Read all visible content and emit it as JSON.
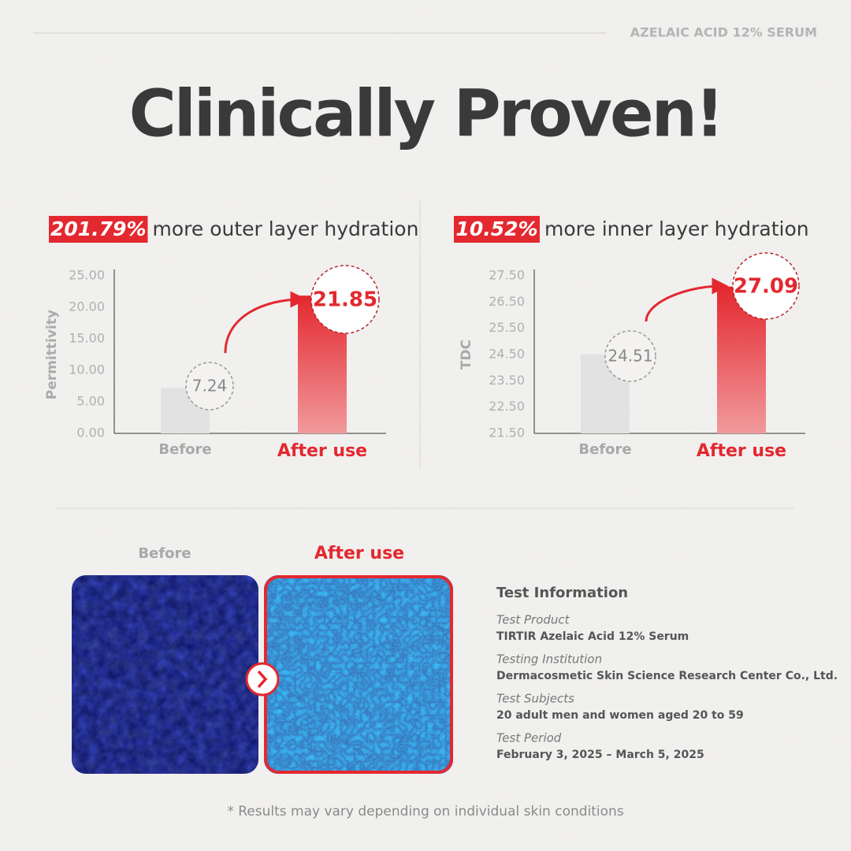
{
  "header": {
    "brand": "AZELAIC ACID 12% SERUM",
    "title": "Clinically Proven!"
  },
  "chart_data": [
    {
      "type": "bar",
      "highlight": "201.79%",
      "title": "more outer layer hydration",
      "y_label": "Permittivity",
      "categories": [
        "Before",
        "After use"
      ],
      "values": [
        7.24,
        21.85
      ],
      "colors": [
        "#e2e2e2",
        "#e3282f"
      ],
      "ylim": [
        0,
        25
      ],
      "yticks": [
        {
          "value": 0,
          "label": "0.00"
        },
        {
          "value": 5,
          "label": "5.00"
        },
        {
          "value": 10,
          "label": "10.00"
        },
        {
          "value": 15,
          "label": "15.00"
        },
        {
          "value": 20,
          "label": "20.00"
        },
        {
          "value": 25,
          "label": "25.00"
        }
      ]
    },
    {
      "type": "bar",
      "highlight": "10.52%",
      "title": "more inner layer hydration",
      "y_label": "TDC",
      "categories": [
        "Before",
        "After use"
      ],
      "values": [
        24.51,
        27.09
      ],
      "colors": [
        "#e2e2e2",
        "#e3282f"
      ],
      "ylim": [
        21.5,
        27.5
      ],
      "yticks": [
        {
          "value": 21.5,
          "label": "21.50"
        },
        {
          "value": 22.5,
          "label": "22.50"
        },
        {
          "value": 23.5,
          "label": "23.50"
        },
        {
          "value": 24.5,
          "label": "24.50"
        },
        {
          "value": 25.5,
          "label": "25.50"
        },
        {
          "value": 26.5,
          "label": "26.50"
        },
        {
          "value": 27.5,
          "label": "27.50"
        }
      ]
    }
  ],
  "comparison": {
    "before": "Before",
    "after": "After use"
  },
  "test_info": {
    "title": "Test Information",
    "items": [
      {
        "label": "Test Product",
        "value": "TIRTIR Azelaic Acid 12% Serum"
      },
      {
        "label": "Testing Institution",
        "value": "Dermacosmetic Skin Science Research Center Co., Ltd."
      },
      {
        "label": "Test Subjects",
        "value": "20 adult men and women aged 20 to 59"
      },
      {
        "label": "Test Period",
        "value": "February 3, 2025 – March 5, 2025"
      }
    ]
  },
  "footnote": "* Results may vary depending on individual skin conditions"
}
